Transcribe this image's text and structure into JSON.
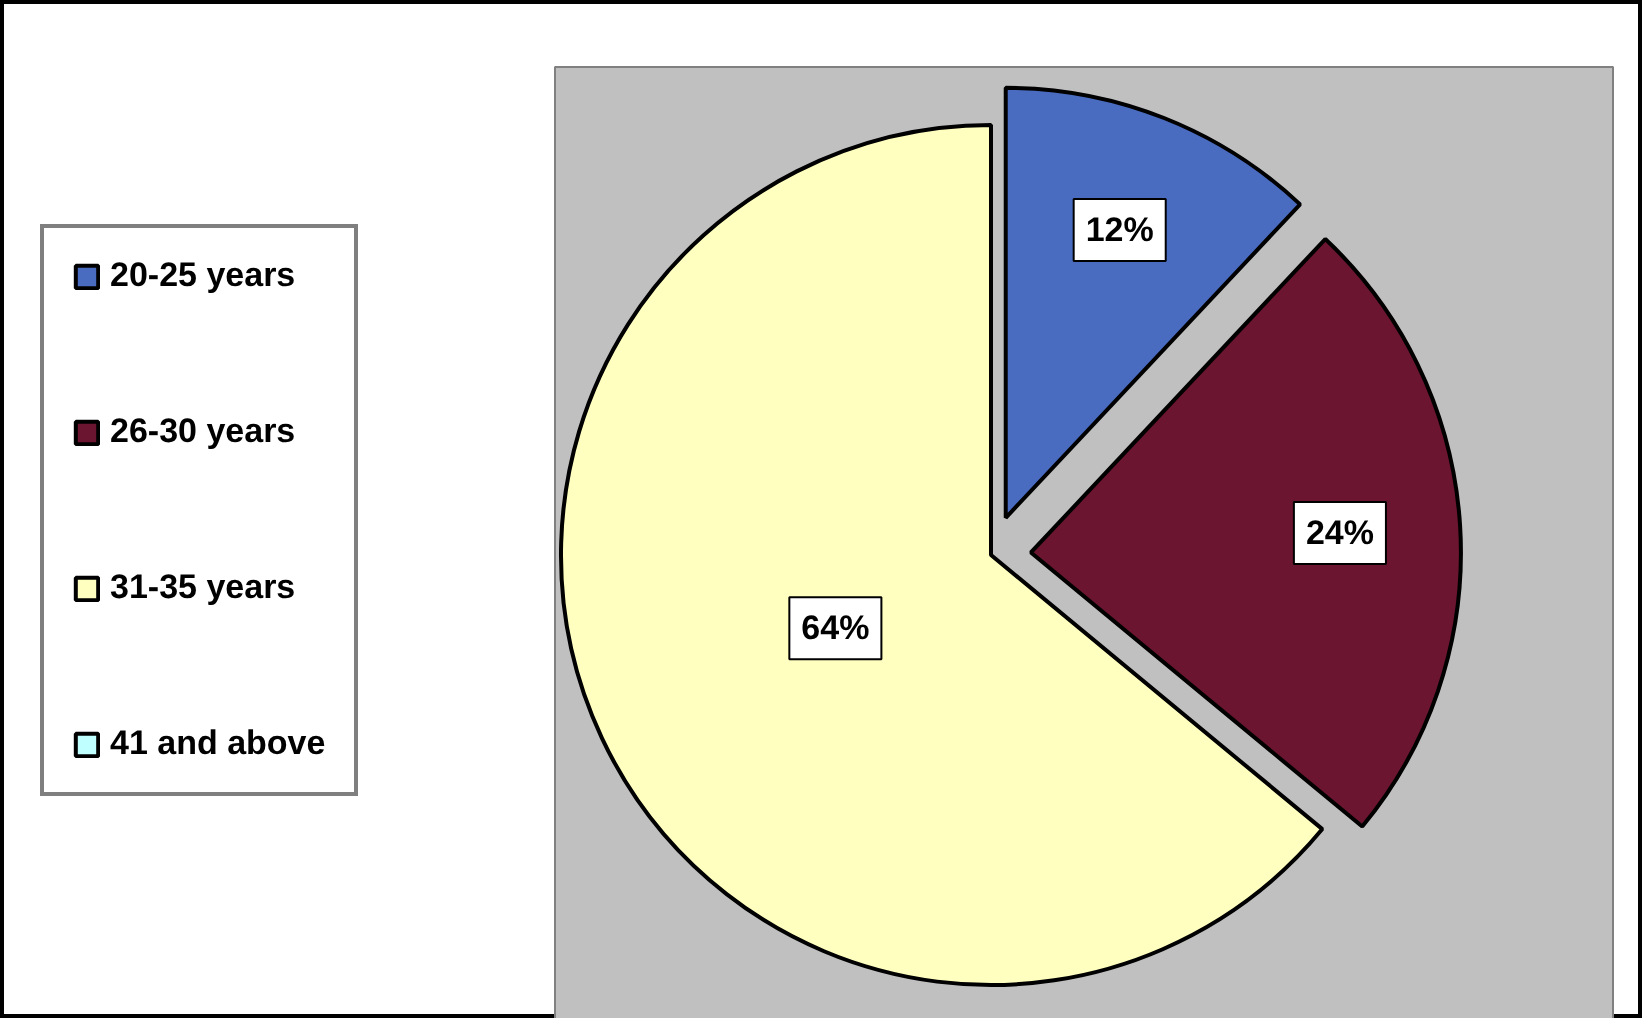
{
  "chart_data": {
    "type": "pie",
    "categories": [
      "20-25 years",
      "26-30 years",
      "31-35 years",
      "41 and above"
    ],
    "values": [
      12,
      24,
      64,
      0
    ],
    "colors": [
      "#4a6cc0",
      "#6b1530",
      "#ffffc0",
      "#c0ffff"
    ],
    "value_labels": [
      "12%",
      "24%",
      "64%",
      null
    ],
    "legend": "left"
  }
}
